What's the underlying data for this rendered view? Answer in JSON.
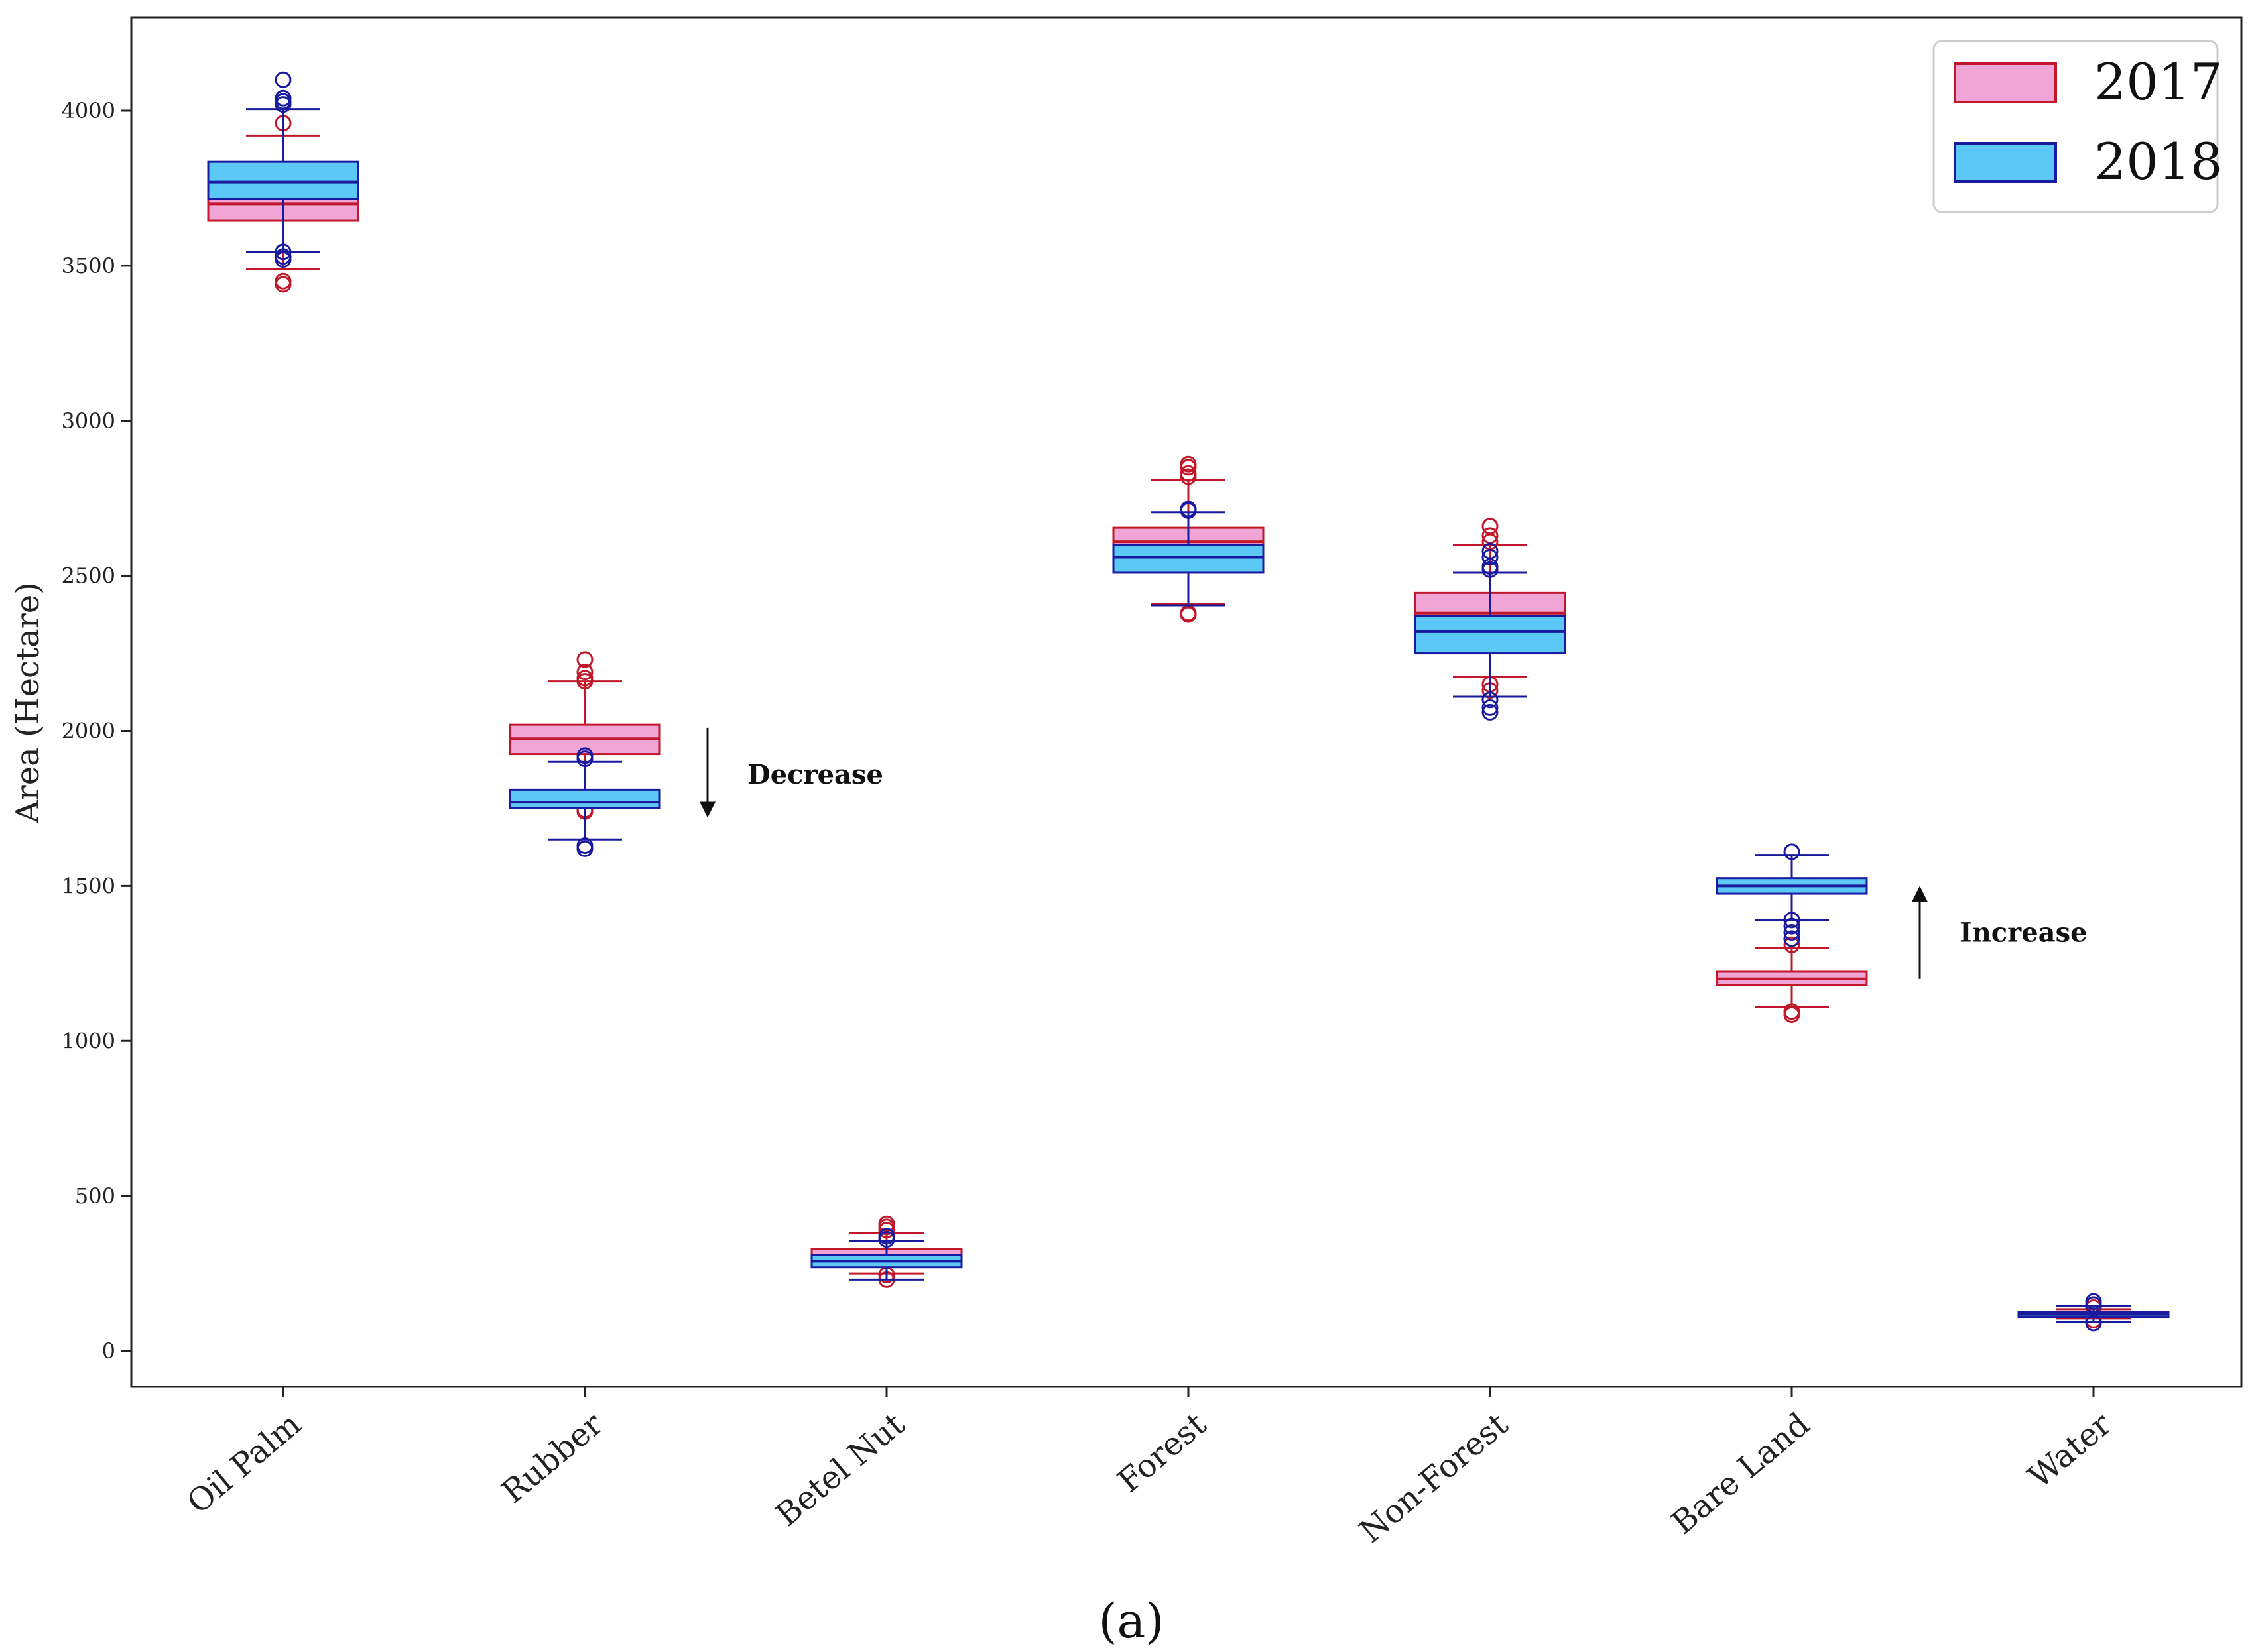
{
  "chart_data": {
    "type": "box",
    "title": "",
    "xlabel": "",
    "ylabel": "Area (Hectare)",
    "ylim": [
      -120,
      4300
    ],
    "yticks": [
      0,
      500,
      1000,
      1500,
      2000,
      2500,
      3000,
      3500,
      4000
    ],
    "categories": [
      "Oil Palm",
      "Rubber",
      "Betel Nut",
      "Forest",
      "Non-Forest",
      "Bare Land",
      "Water"
    ],
    "series": [
      {
        "name": "2017",
        "fill": "#f0a5d6",
        "edge": "#c0182a",
        "boxes": [
          {
            "whislo": 3490,
            "q1": 3645,
            "med": 3700,
            "q3": 3760,
            "whishi": 3920,
            "fliers": [
              3440,
              3450,
              3960
            ]
          },
          {
            "whislo": 1800,
            "q1": 1925,
            "med": 1975,
            "q3": 2020,
            "whishi": 2160,
            "fliers": [
              1740,
              1745,
              2160,
              2170,
              2190,
              2230
            ]
          },
          {
            "whislo": 250,
            "q1": 280,
            "med": 310,
            "q3": 330,
            "whishi": 380,
            "fliers": [
              230,
              245,
              390,
              400,
              410
            ]
          },
          {
            "whislo": 2410,
            "q1": 2540,
            "med": 2610,
            "q3": 2655,
            "whishi": 2810,
            "fliers": [
              2375,
              2380,
              2820,
              2830,
              2850,
              2860
            ]
          },
          {
            "whislo": 2175,
            "q1": 2290,
            "med": 2380,
            "q3": 2445,
            "whishi": 2600,
            "fliers": [
              2130,
              2150,
              2610,
              2630,
              2660
            ]
          },
          {
            "whislo": 1110,
            "q1": 1180,
            "med": 1200,
            "q3": 1225,
            "whishi": 1300,
            "fliers": [
              1085,
              1095,
              1310,
              1330
            ]
          },
          {
            "whislo": 105,
            "q1": 115,
            "med": 120,
            "q3": 125,
            "whishi": 135,
            "fliers": [
              100,
              140
            ]
          }
        ]
      },
      {
        "name": "2018",
        "fill": "#5bc8f5",
        "edge": "#1a1a9e",
        "boxes": [
          {
            "whislo": 3545,
            "q1": 3715,
            "med": 3770,
            "q3": 3835,
            "whishi": 4005,
            "fliers": [
              3520,
              3530,
              3545,
              4020,
              4030,
              4040,
              4100
            ]
          },
          {
            "whislo": 1650,
            "q1": 1750,
            "med": 1770,
            "q3": 1810,
            "whishi": 1900,
            "fliers": [
              1620,
              1630,
              1910,
              1920
            ]
          },
          {
            "whislo": 230,
            "q1": 270,
            "med": 290,
            "q3": 310,
            "whishi": 355,
            "fliers": [
              360,
              370
            ]
          },
          {
            "whislo": 2405,
            "q1": 2510,
            "med": 2560,
            "q3": 2600,
            "whishi": 2705,
            "fliers": [
              2710,
              2715
            ]
          },
          {
            "whislo": 2110,
            "q1": 2250,
            "med": 2320,
            "q3": 2370,
            "whishi": 2510,
            "fliers": [
              2060,
              2075,
              2100,
              2520,
              2530,
              2560,
              2580
            ]
          },
          {
            "whislo": 1390,
            "q1": 1475,
            "med": 1500,
            "q3": 1525,
            "whishi": 1600,
            "fliers": [
              1330,
              1350,
              1370,
              1390,
              1610
            ]
          },
          {
            "whislo": 95,
            "q1": 110,
            "med": 118,
            "q3": 125,
            "whishi": 145,
            "fliers": [
              90,
              150,
              160
            ]
          }
        ]
      }
    ],
    "legend": {
      "position": "top-right",
      "entries": [
        "2017",
        "2018"
      ]
    },
    "annotations": [
      {
        "text": "Decrease",
        "category": "Rubber",
        "direction": "down",
        "from": 2010,
        "to": 1720
      },
      {
        "text": "Increase",
        "category": "Bare Land",
        "direction": "up",
        "from": 1200,
        "to": 1500
      }
    ],
    "caption": "(a)"
  }
}
